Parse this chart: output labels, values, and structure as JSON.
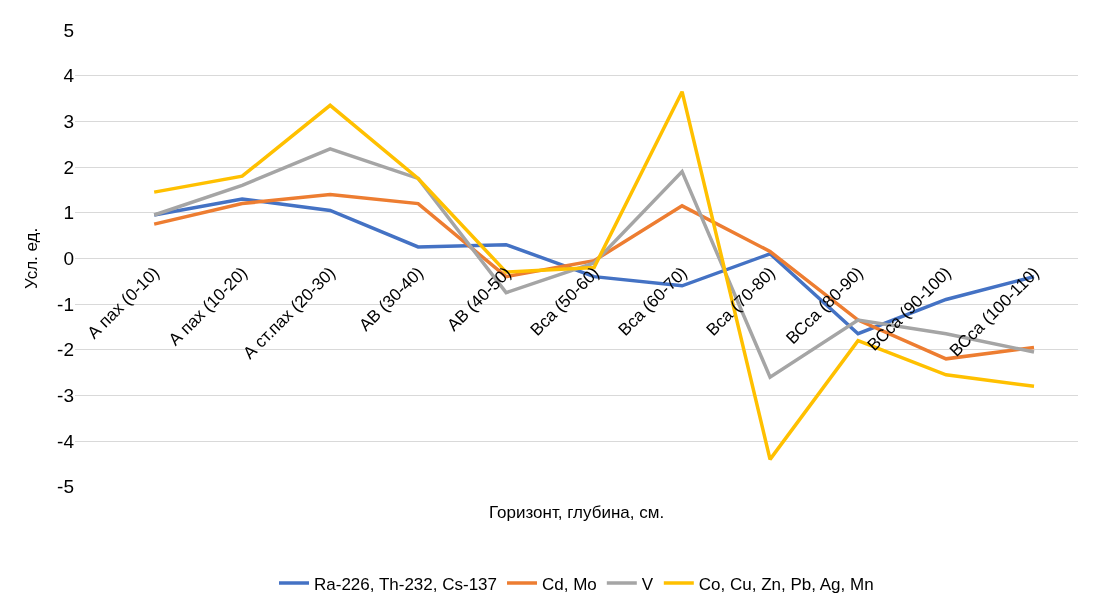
{
  "chart_data": {
    "type": "line",
    "xlabel": "Горизонт, глубина, см.",
    "ylabel": "Усл. ед.",
    "categories": [
      "А пах (0-10)",
      "А пах (10-20)",
      "А ст.пах (20-30)",
      "АВ (30-40)",
      "АВ (40-50)",
      "Вса (50-60)",
      "Вса (60-70)",
      "Вса (70-80)",
      "ВСса (80-90)",
      "ВСса (90-100)",
      "ВСса (100-110)"
    ],
    "series": [
      {
        "name": "Ra-226, Th-232, Cs-137",
        "color": "#4472c4",
        "values": [
          0.95,
          1.3,
          1.05,
          0.25,
          0.3,
          -0.4,
          -0.6,
          0.1,
          -1.65,
          -0.9,
          -0.4
        ]
      },
      {
        "name": "Cd, Mo",
        "color": "#ed7d31",
        "values": [
          0.75,
          1.2,
          1.4,
          1.2,
          -0.4,
          -0.05,
          1.15,
          0.15,
          -1.35,
          -2.2,
          -1.95
        ]
      },
      {
        "name": "V",
        "color": "#a5a5a5",
        "values": [
          0.95,
          1.6,
          2.4,
          1.75,
          -0.75,
          -0.1,
          1.9,
          -2.6,
          -1.35,
          -1.65,
          -2.05
        ]
      },
      {
        "name": "Co, Cu, Zn, Pb, Ag, Mn",
        "color": "#ffc000",
        "values": [
          1.45,
          1.8,
          3.35,
          1.75,
          -0.3,
          -0.2,
          3.65,
          -4.4,
          -1.8,
          -2.55,
          -2.8
        ]
      }
    ],
    "ylim": [
      -5,
      5
    ],
    "yticks": [
      -5,
      -4,
      -3,
      -2,
      -1,
      0,
      1,
      2,
      3,
      4,
      5
    ],
    "grid": "y",
    "legend": "bottom",
    "marker": "none",
    "line_style": "solid"
  }
}
